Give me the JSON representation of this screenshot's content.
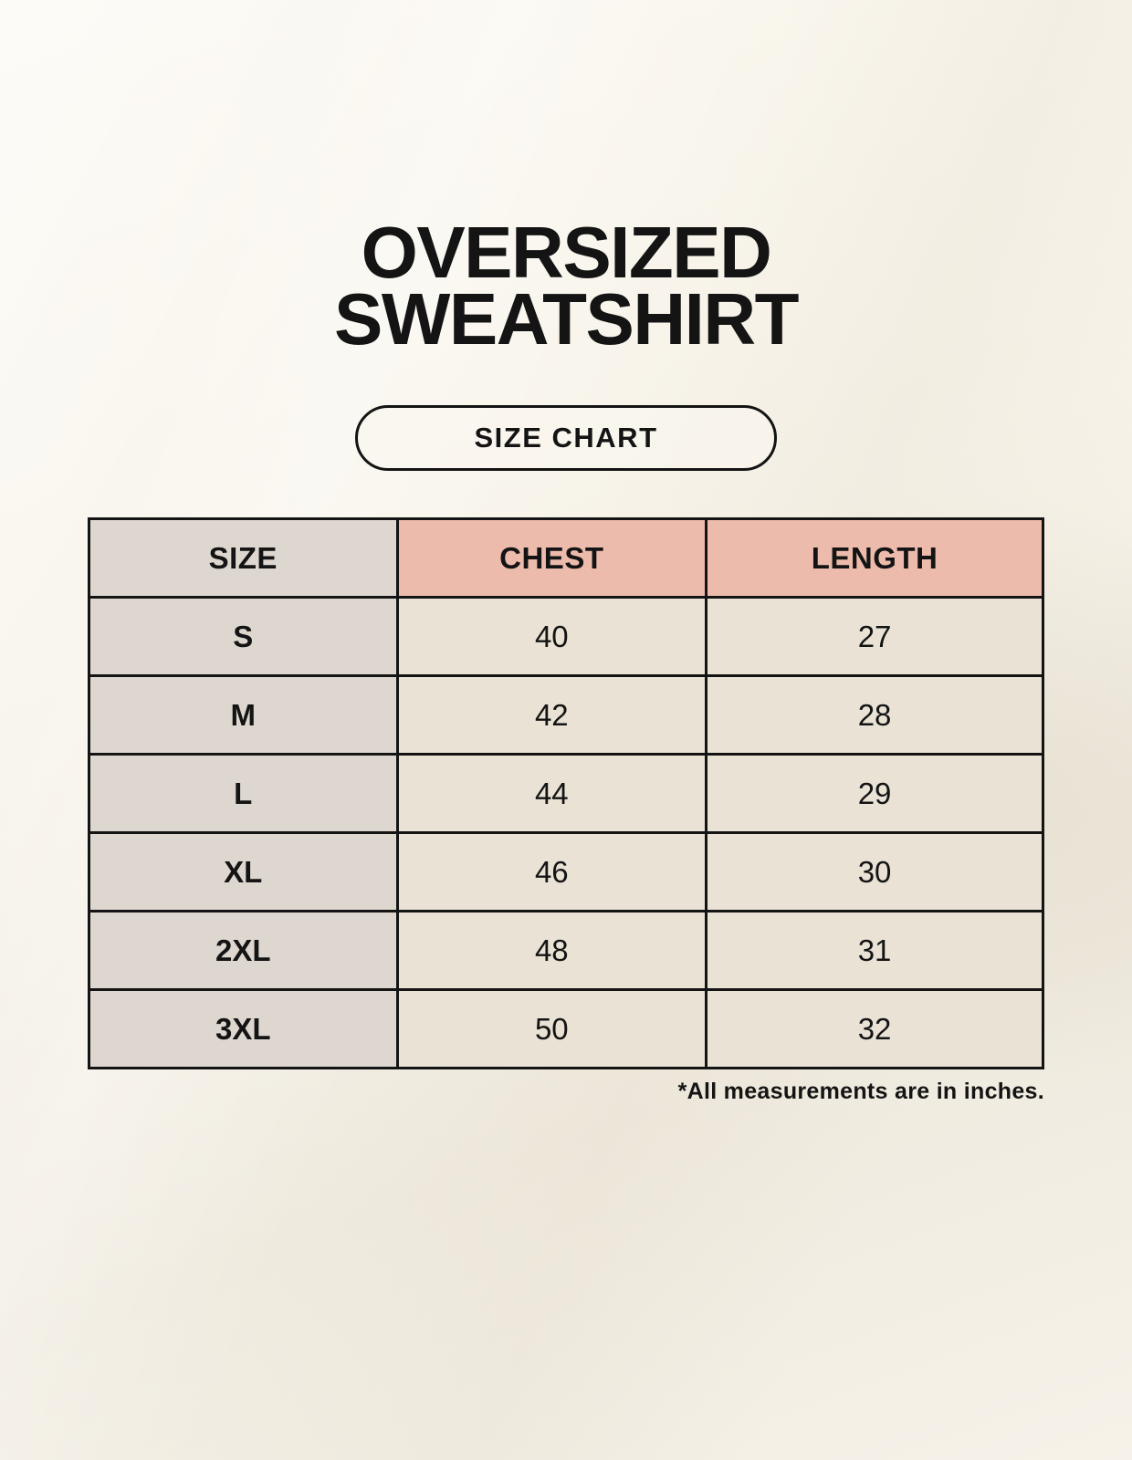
{
  "header": {
    "title_line1": "OVERSIZED",
    "title_line2": "SWEATSHIRT",
    "badge_label": "SIZE CHART"
  },
  "chart_data": {
    "type": "table",
    "title": "OVERSIZED SWEATSHIRT",
    "subtitle": "SIZE CHART",
    "columns": [
      "SIZE",
      "CHEST",
      "LENGTH"
    ],
    "rows": [
      [
        "S",
        "40",
        "27"
      ],
      [
        "M",
        "42",
        "28"
      ],
      [
        "L",
        "44",
        "29"
      ],
      [
        "XL",
        "46",
        "30"
      ],
      [
        "2XL",
        "48",
        "31"
      ],
      [
        "3XL",
        "50",
        "32"
      ]
    ],
    "footnote": "*All measurements are in inches.",
    "units": "inches"
  },
  "colors": {
    "page_background": "#F8F4EB",
    "header_accent_salmon": "#EDBBAC",
    "size_column_gray": "#DED7D0",
    "data_cell_cream": "#E9E2D5",
    "border_black": "#141414",
    "text_black": "#141414"
  }
}
